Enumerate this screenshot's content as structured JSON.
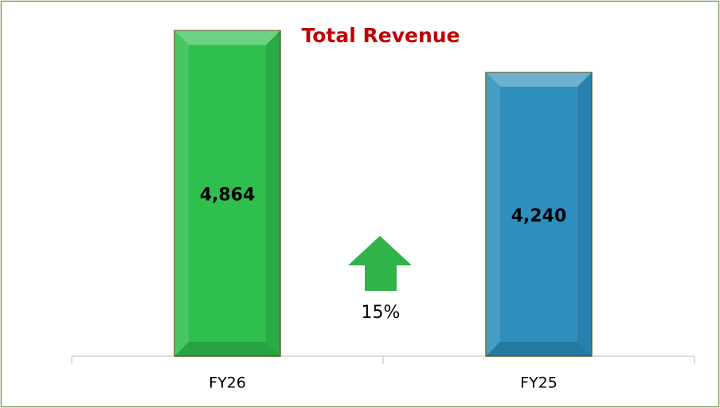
{
  "chart_data": {
    "type": "bar",
    "title": "Total Revenue",
    "categories": [
      "FY26",
      "FY25"
    ],
    "values": [
      4864,
      4240
    ],
    "value_labels": [
      "4,864",
      "4,240"
    ],
    "colors": [
      "#2fbf4f",
      "#2e8fbf"
    ],
    "ylim": [
      0,
      5000
    ],
    "annotation": "15%"
  }
}
